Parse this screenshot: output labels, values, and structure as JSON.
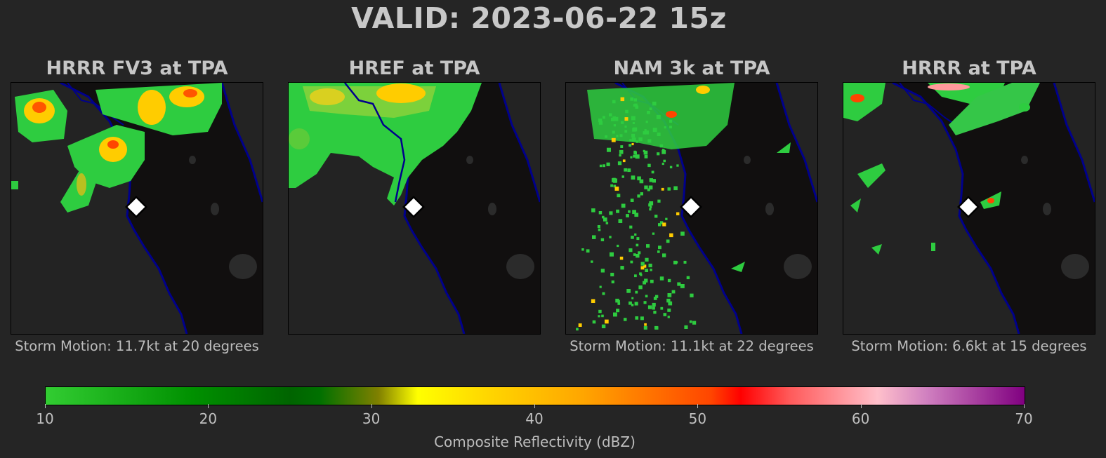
{
  "title": "VALID: 2023-06-22 15z",
  "panels": [
    {
      "title": "HRRR FV3 at TPA",
      "motion": "Storm Motion: 11.7kt at 20 degrees"
    },
    {
      "title": "HREF at TPA",
      "motion": ""
    },
    {
      "title": "NAM 3k at TPA",
      "motion": "Storm Motion: 11.1kt at 22 degrees"
    },
    {
      "title": "HRRR at TPA",
      "motion": "Storm Motion: 6.6kt at 15 degrees"
    }
  ],
  "colorbar": {
    "label": "Composite Reflectivity (dBZ)",
    "ticks": [
      "10",
      "20",
      "30",
      "40",
      "50",
      "60",
      "70"
    ],
    "range": [
      10,
      70
    ]
  },
  "colors": {
    "background": "#252525",
    "land": "#110f0f",
    "water": "#232323",
    "coastline": "#00008b",
    "marker": "#ffffff"
  },
  "marker_icon": "diamond-marker-icon"
}
